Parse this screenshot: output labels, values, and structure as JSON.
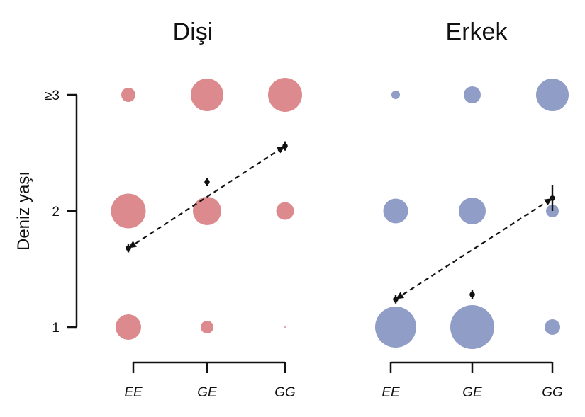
{
  "chart_data": {
    "type": "scatter",
    "ylabel": "Deniz yaşı",
    "y_ticks": [
      {
        "value": 1,
        "label": "1"
      },
      {
        "value": 2,
        "label": "2"
      },
      {
        "value": 3,
        "label": "≥3"
      }
    ],
    "ylim": [
      1,
      3
    ],
    "categories": [
      "EE",
      "GE",
      "GG"
    ],
    "colors": {
      "female": "#dd8a8e",
      "male": "#8f9dc7",
      "line": "#111111"
    },
    "panels": [
      {
        "title": "Dişi",
        "color_key": "female",
        "bubbles": [
          {
            "genotype": "EE",
            "age": 1,
            "size": 0.36
          },
          {
            "genotype": "GE",
            "age": 1,
            "size": 0.18
          },
          {
            "genotype": "GG",
            "age": 1,
            "size": 0.02
          },
          {
            "genotype": "EE",
            "age": 2,
            "size": 0.49
          },
          {
            "genotype": "GE",
            "age": 2,
            "size": 0.4
          },
          {
            "genotype": "GG",
            "age": 2,
            "size": 0.25
          },
          {
            "genotype": "EE",
            "age": 3,
            "size": 0.2
          },
          {
            "genotype": "GE",
            "age": 3,
            "size": 0.46
          },
          {
            "genotype": "GG",
            "age": 3,
            "size": 0.48
          }
        ],
        "means": [
          {
            "genotype": "EE",
            "mean": 1.68,
            "se": 0.015
          },
          {
            "genotype": "GE",
            "mean": 2.25,
            "se": 0.03
          },
          {
            "genotype": "GG",
            "mean": 2.56,
            "se": 0.04
          }
        ],
        "fit": {
          "from": {
            "genotype": "EE",
            "age": 1.68
          },
          "to": {
            "genotype": "GG",
            "age": 2.56
          }
        }
      },
      {
        "title": "Erkek",
        "color_key": "male",
        "bubbles": [
          {
            "genotype": "EE",
            "age": 1,
            "size": 0.58
          },
          {
            "genotype": "GE",
            "age": 1,
            "size": 0.62
          },
          {
            "genotype": "GG",
            "age": 1,
            "size": 0.22
          },
          {
            "genotype": "EE",
            "age": 2,
            "size": 0.35
          },
          {
            "genotype": "GE",
            "age": 2,
            "size": 0.38
          },
          {
            "genotype": "GG",
            "age": 2,
            "size": 0.18
          },
          {
            "genotype": "EE",
            "age": 3,
            "size": 0.12
          },
          {
            "genotype": "GE",
            "age": 3,
            "size": 0.24
          },
          {
            "genotype": "GG",
            "age": 3,
            "size": 0.46
          }
        ],
        "means": [
          {
            "genotype": "EE",
            "mean": 1.24,
            "se": 0.02
          },
          {
            "genotype": "GE",
            "mean": 1.28,
            "se": 0.04
          },
          {
            "genotype": "GG",
            "mean": 2.11,
            "se": 0.11
          }
        ],
        "fit": {
          "from": {
            "genotype": "EE",
            "age": 1.24
          },
          "to": {
            "genotype": "GG",
            "age": 2.11
          }
        }
      }
    ]
  }
}
